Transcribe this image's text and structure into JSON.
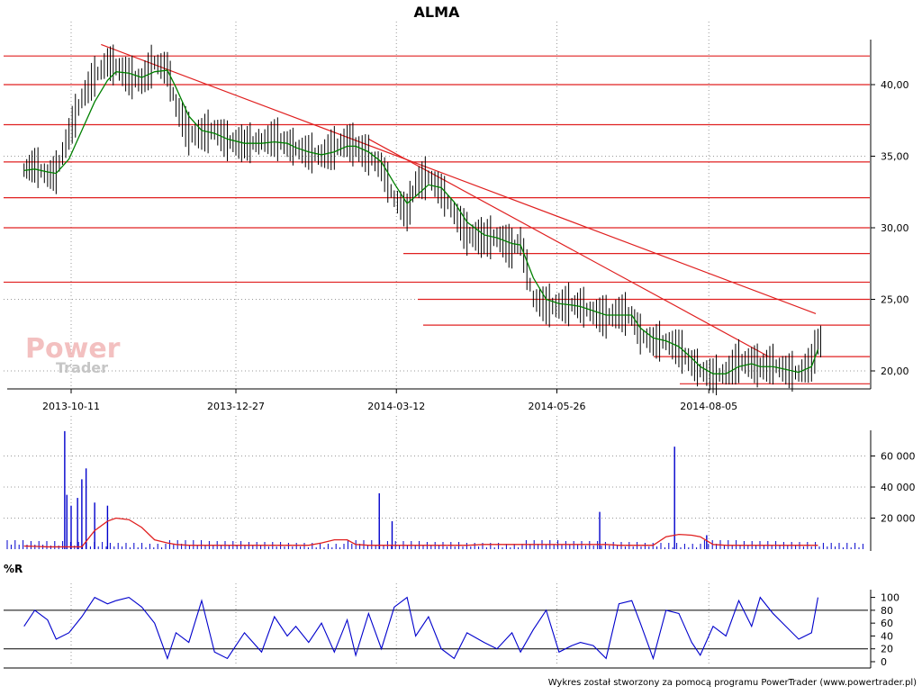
{
  "title": "ALMA",
  "footer": "Wykres został stworzony za pomocą programu PowerTrader (www.powertrader.pl)",
  "watermark": {
    "line1": "Power",
    "line2": "Trader"
  },
  "colors": {
    "price_bars": "#000000",
    "moving_average": "#008000",
    "support_resistance": "#e02020",
    "volume_bars": "#0000cc",
    "volume_average": "#e02020",
    "williams_r": "#0000cc",
    "grid": "#999999",
    "watermark": "#e8a0a0"
  },
  "chart_data": [
    {
      "type": "line",
      "name": "price-panel",
      "title": "ALMA",
      "x_tick_labels": [
        "2013-10-11",
        "2013-12-27",
        "2014-03-12",
        "2014-05-26",
        "2014-08-05"
      ],
      "y_tick_labels": [
        "20,00",
        "25,00",
        "30,00",
        "35,00",
        "40,00"
      ],
      "ylim": [
        19.0,
        43.3
      ],
      "grid": true,
      "horizontal_levels": [
        42.0,
        40.0,
        37.2,
        34.6,
        32.1,
        30.0,
        28.2,
        26.2,
        25.0,
        23.2,
        21.0,
        19.1
      ],
      "trendlines": [
        {
          "from": [
            "2013-10-25",
            42.8
          ],
          "to": [
            "2014-09-24",
            24.0
          ]
        },
        {
          "from": [
            "2014-02-27",
            36.2
          ],
          "to": [
            "2014-09-02",
            21.0
          ]
        }
      ],
      "x": [
        "2013-09-19",
        "2013-09-24",
        "2013-09-30",
        "2013-10-04",
        "2013-10-10",
        "2013-10-16",
        "2013-10-22",
        "2013-10-28",
        "2013-11-01",
        "2013-11-07",
        "2013-11-13",
        "2013-11-19",
        "2013-11-25",
        "2013-11-29",
        "2013-12-05",
        "2013-12-11",
        "2013-12-17",
        "2013-12-23",
        "2013-12-31",
        "2014-01-08",
        "2014-01-14",
        "2014-01-20",
        "2014-01-24",
        "2014-01-30",
        "2014-02-05",
        "2014-02-11",
        "2014-02-17",
        "2014-02-21",
        "2014-02-27",
        "2014-03-05",
        "2014-03-11",
        "2014-03-17",
        "2014-03-21",
        "2014-03-27",
        "2014-04-02",
        "2014-04-08",
        "2014-04-14",
        "2014-04-22",
        "2014-04-28",
        "2014-05-05",
        "2014-05-09",
        "2014-05-15",
        "2014-05-21",
        "2014-05-27",
        "2014-06-02",
        "2014-06-06",
        "2014-06-12",
        "2014-06-18",
        "2014-06-24",
        "2014-06-30",
        "2014-07-04",
        "2014-07-10",
        "2014-07-16",
        "2014-07-22",
        "2014-07-28",
        "2014-08-01",
        "2014-08-07",
        "2014-08-13",
        "2014-08-19",
        "2014-08-25",
        "2014-08-29",
        "2014-09-04",
        "2014-09-10",
        "2014-09-16",
        "2014-09-22",
        "2014-09-25"
      ],
      "series": [
        {
          "name": "close",
          "values": [
            34.0,
            34.3,
            33.6,
            33.8,
            36.5,
            39.0,
            40.5,
            41.5,
            41.2,
            40.5,
            40.2,
            41.5,
            41.0,
            38.5,
            36.5,
            36.5,
            36.8,
            36.0,
            35.8,
            36.0,
            36.2,
            35.8,
            35.5,
            35.2,
            35.0,
            35.5,
            36.0,
            35.6,
            35.0,
            34.2,
            32.0,
            31.0,
            33.0,
            33.5,
            32.5,
            31.0,
            29.5,
            29.2,
            29.3,
            28.5,
            29.0,
            25.0,
            24.5,
            24.5,
            24.6,
            24.5,
            24.0,
            23.7,
            24.0,
            23.8,
            22.5,
            22.0,
            22.0,
            21.5,
            20.5,
            20.0,
            19.6,
            19.8,
            20.6,
            20.5,
            20.2,
            20.4,
            20.0,
            19.8,
            20.5,
            22.0
          ]
        },
        {
          "name": "moving-average",
          "values": [
            34.0,
            34.1,
            33.9,
            33.8,
            34.8,
            36.8,
            38.8,
            40.3,
            40.9,
            40.8,
            40.5,
            40.9,
            41.0,
            39.8,
            37.8,
            36.8,
            36.6,
            36.2,
            35.9,
            35.9,
            36.0,
            35.9,
            35.6,
            35.3,
            35.1,
            35.3,
            35.7,
            35.7,
            35.3,
            34.6,
            33.1,
            31.7,
            32.2,
            33.0,
            32.8,
            31.8,
            30.4,
            29.5,
            29.3,
            28.9,
            28.8,
            26.5,
            25.0,
            24.7,
            24.6,
            24.5,
            24.2,
            23.9,
            23.9,
            23.9,
            23.0,
            22.3,
            22.1,
            21.7,
            20.9,
            20.3,
            19.8,
            19.8,
            20.3,
            20.5,
            20.3,
            20.3,
            20.1,
            19.9,
            20.3,
            21.5
          ]
        }
      ]
    },
    {
      "type": "bar",
      "name": "volume-panel",
      "y_tick_labels": [
        "20 000",
        "40 000",
        "60 000"
      ],
      "ylim": [
        0,
        78000
      ],
      "grid": true,
      "spikes": [
        {
          "date": "2013-10-08",
          "value": 76000
        },
        {
          "date": "2013-10-09",
          "value": 35000
        },
        {
          "date": "2013-10-11",
          "value": 28000
        },
        {
          "date": "2013-10-14",
          "value": 33000
        },
        {
          "date": "2013-10-16",
          "value": 45000
        },
        {
          "date": "2013-10-18",
          "value": 52000
        },
        {
          "date": "2013-10-22",
          "value": 30000
        },
        {
          "date": "2013-10-28",
          "value": 28000
        },
        {
          "date": "2014-03-04",
          "value": 36000
        },
        {
          "date": "2014-03-10",
          "value": 18000
        },
        {
          "date": "2014-06-15",
          "value": 24000
        },
        {
          "date": "2014-07-20",
          "value": 66000
        },
        {
          "date": "2014-08-04",
          "value": 9000
        }
      ],
      "series": [
        {
          "name": "volume-average",
          "values": [
            2000,
            1800,
            1500,
            1500,
            1500,
            1500,
            12000,
            18000,
            20000,
            19000,
            14000,
            6000,
            4000,
            3000,
            2500,
            2500,
            2500,
            2500,
            2500,
            2500,
            2500,
            2500,
            2500,
            2500,
            4000,
            6000,
            6000,
            3000,
            2500,
            2500,
            2500,
            2500,
            2500,
            2500,
            2500,
            2500,
            2500,
            3000,
            3000,
            3000,
            3000,
            3000,
            3000,
            3000,
            3000,
            3000,
            3000,
            3000,
            2500,
            2500,
            2500,
            2500,
            8000,
            9500,
            9000,
            8000,
            3000,
            2500,
            2500,
            2500,
            2500,
            2500,
            2500,
            2500,
            2500,
            2500
          ]
        }
      ]
    },
    {
      "type": "line",
      "name": "williams-r-panel",
      "title": "%R",
      "y_tick_labels": [
        "0",
        "20",
        "40",
        "60",
        "80",
        "100"
      ],
      "ylim": [
        -5,
        105
      ],
      "reference_lines": [
        20,
        80
      ],
      "grid": true,
      "series": [
        {
          "name": "williams-r",
          "values": [
            55,
            80,
            65,
            35,
            45,
            70,
            100,
            90,
            95,
            100,
            85,
            60,
            5,
            45,
            30,
            95,
            15,
            5,
            45,
            15,
            70,
            40,
            55,
            30,
            60,
            15,
            65,
            10,
            75,
            20,
            85,
            100,
            40,
            70,
            20,
            5,
            45,
            30,
            20,
            45,
            15,
            50,
            80,
            15,
            25,
            30,
            25,
            5,
            90,
            95,
            60,
            5,
            80,
            75,
            30,
            10,
            55,
            40,
            95,
            55,
            100,
            75,
            55,
            35,
            45,
            100
          ]
        }
      ]
    }
  ]
}
